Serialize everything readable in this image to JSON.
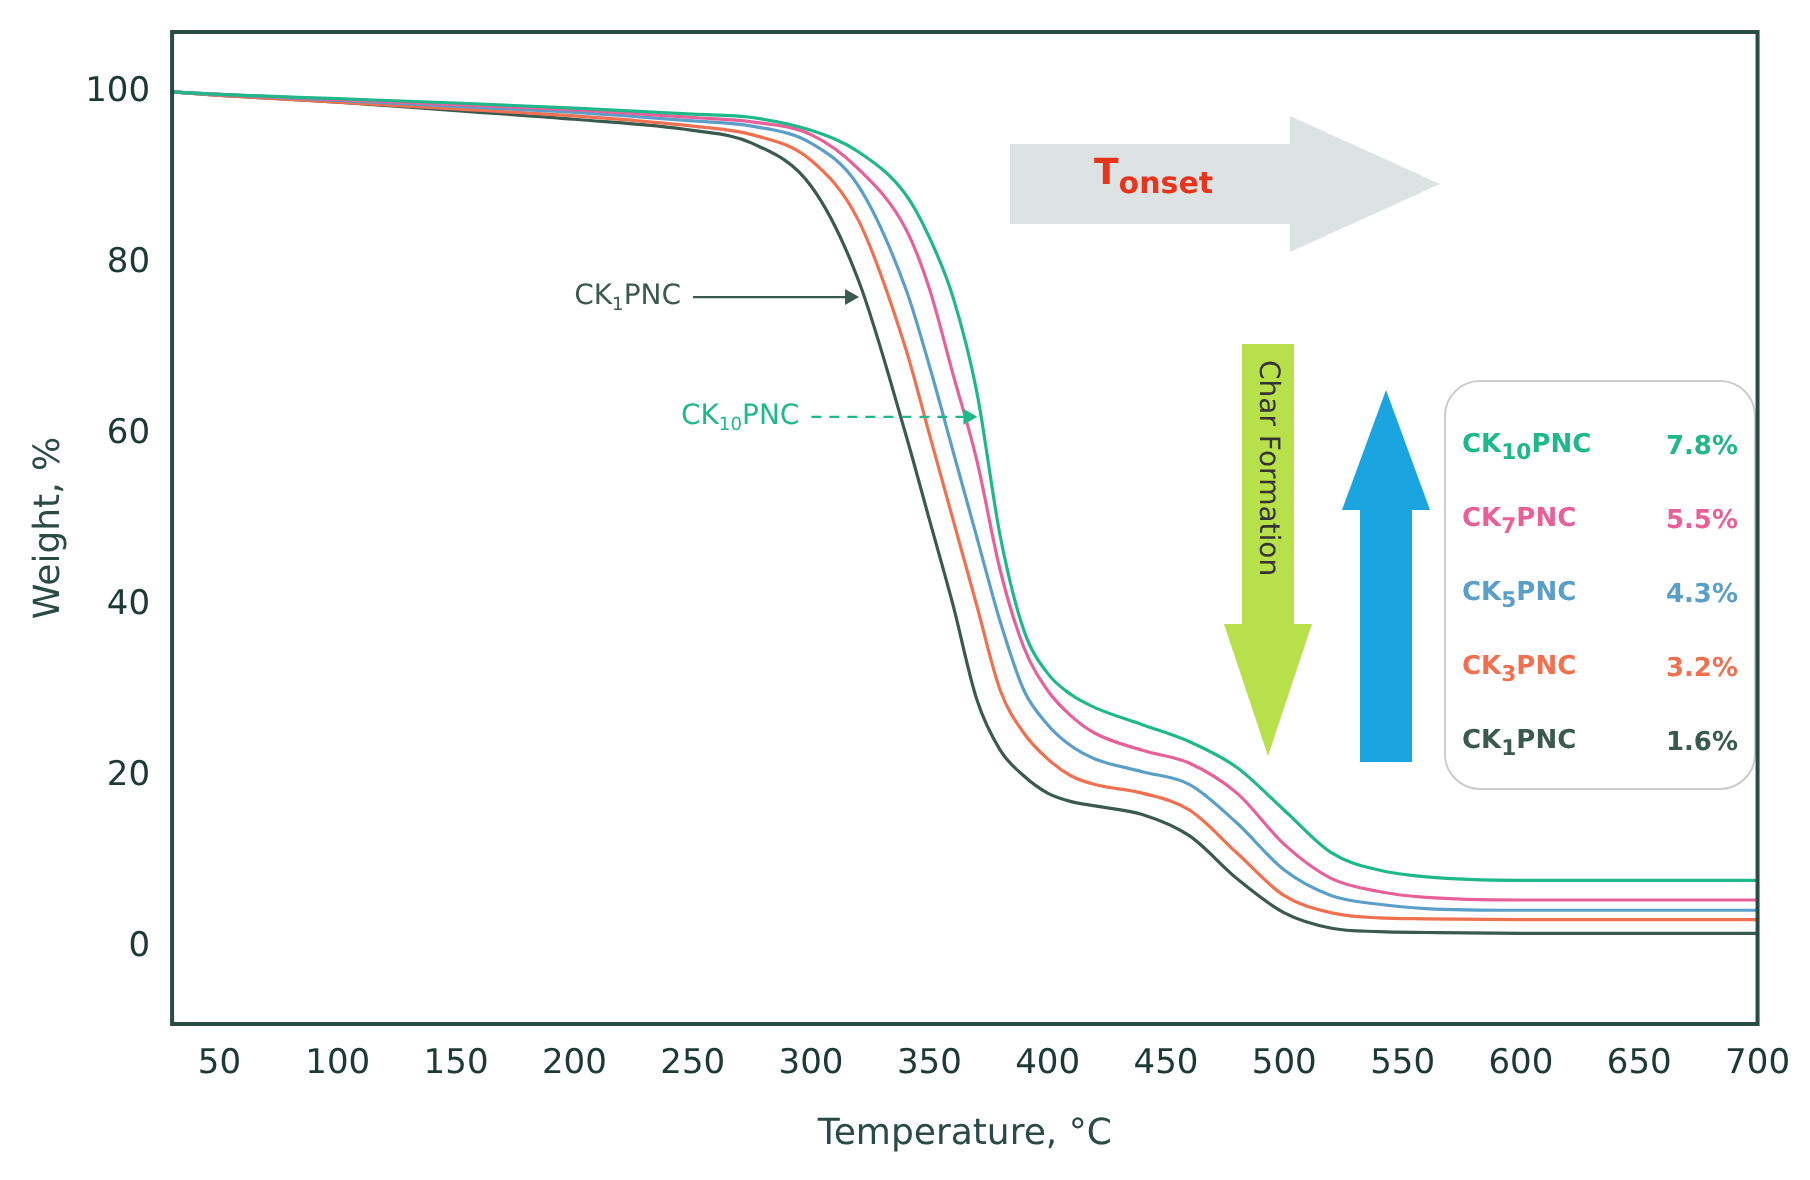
{
  "chart_data": {
    "type": "line",
    "xlabel": "Temperature, °C",
    "ylabel": "Weight, %",
    "x": [
      30,
      50,
      100,
      150,
      200,
      250,
      275,
      300,
      320,
      340,
      350,
      360,
      370,
      380,
      390,
      400,
      410,
      420,
      440,
      460,
      480,
      500,
      520,
      540,
      560,
      600,
      650,
      700
    ],
    "series": [
      {
        "name": "CK$_{10}$PNC",
        "color": "#1fb88a",
        "values": [
          100,
          99.7,
          99.2,
          98.7,
          98.1,
          97.4,
          97,
          95.5,
          93,
          88,
          83,
          76,
          65,
          48,
          37,
          32,
          29.5,
          28,
          26,
          24,
          21,
          16,
          11,
          9,
          8.2,
          7.8,
          7.8,
          7.8
        ]
      },
      {
        "name": "CK$_{7}$PNC",
        "color": "#e8609a",
        "values": [
          100,
          99.7,
          99.1,
          98.5,
          97.9,
          97,
          96.5,
          95,
          91,
          84,
          77,
          67,
          57,
          44,
          35,
          30,
          27,
          25,
          23,
          21.5,
          18,
          12,
          8,
          6.5,
          5.8,
          5.5,
          5.5,
          5.5
        ]
      },
      {
        "name": "CK$_{5}$PNC",
        "color": "#5a9fc8",
        "values": [
          100,
          99.7,
          99,
          98.3,
          97.6,
          96.6,
          96,
          94,
          89,
          77,
          68,
          58,
          48,
          38,
          30,
          26,
          23.5,
          22,
          20.5,
          19,
          14.5,
          9,
          6,
          5,
          4.5,
          4.3,
          4.3,
          4.3
        ]
      },
      {
        "name": "CK$_{3}$PNC",
        "color": "#f07050",
        "values": [
          100,
          99.6,
          98.8,
          98,
          97.2,
          96,
          95,
          92,
          85,
          70,
          60,
          50,
          40,
          30,
          25,
          22,
          20,
          19,
          18,
          16,
          11,
          6,
          4,
          3.4,
          3.3,
          3.2,
          3.2,
          3.2
        ]
      },
      {
        "name": "CK$_{1}$PNC",
        "color": "#3a5a50",
        "values": [
          100,
          99.6,
          98.8,
          97.8,
          96.8,
          95.5,
          94,
          89,
          78,
          60,
          50,
          40,
          29,
          23,
          20,
          18,
          17,
          16.5,
          15.5,
          13,
          8,
          4,
          2.2,
          1.8,
          1.7,
          1.6,
          1.6,
          1.6
        ]
      }
    ],
    "xlim": [
      30,
      700
    ],
    "xticks": [
      50,
      100,
      150,
      200,
      250,
      300,
      350,
      400,
      450,
      500,
      550,
      600,
      650,
      700
    ],
    "ylim": [
      -9,
      107
    ],
    "yticks": [
      0,
      20,
      40,
      60,
      80,
      100
    ],
    "grid": false,
    "legend": "right",
    "marker": "none",
    "line_style": "solid",
    "annotations": [
      "T$_{onset}$",
      "Char Formation",
      "7.8%",
      "5.5%",
      "4.3%",
      "3.2%",
      "1.6%",
      {
        "text": "CK$_{1}$PNC",
        "x": 322,
        "y": 76
      },
      {
        "text": "CK$_{10}$PNC",
        "x": 372,
        "y": 62
      }
    ]
  }
}
